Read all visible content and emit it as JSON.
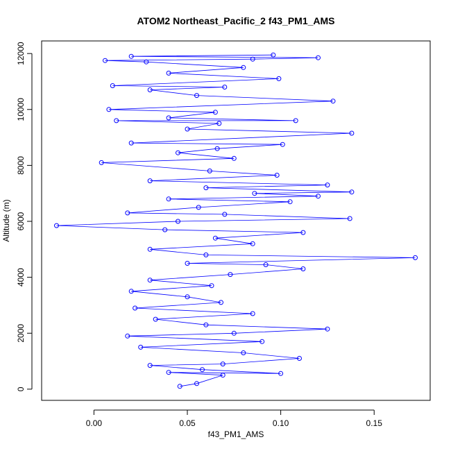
{
  "chart_data": {
    "type": "scatter",
    "title": "ATOM2 Northeast_Pacific_2 f43_PM1_AMS",
    "xlabel": "f43_PM1_AMS",
    "ylabel": "Altitude (m)",
    "xlim": [
      -0.028,
      0.18
    ],
    "ylim": [
      -400,
      12450
    ],
    "x_ticks": [
      0.0,
      0.05,
      0.1,
      0.15
    ],
    "x_tick_labels": [
      "0.00",
      "0.05",
      "0.10",
      "0.15"
    ],
    "y_ticks": [
      0,
      2000,
      4000,
      6000,
      8000,
      10000,
      12000
    ],
    "y_tick_labels": [
      "0",
      "2000",
      "4000",
      "6000",
      "8000",
      "10000",
      "12000"
    ],
    "grid": false,
    "legend": "none",
    "colors": {
      "series": "#0000ff",
      "axes": "#000000"
    },
    "series": [
      {
        "connected": true,
        "marker": "open-circle",
        "points": [
          [
            0.046,
            100
          ],
          [
            0.055,
            200
          ],
          [
            0.069,
            500
          ],
          [
            0.04,
            600
          ],
          [
            0.1,
            560
          ],
          [
            0.058,
            700
          ],
          [
            0.03,
            850
          ],
          [
            0.069,
            900
          ],
          [
            0.11,
            1100
          ],
          [
            0.08,
            1300
          ],
          [
            0.025,
            1500
          ],
          [
            0.09,
            1700
          ],
          [
            0.018,
            1900
          ],
          [
            0.075,
            2000
          ],
          [
            0.125,
            2150
          ],
          [
            0.06,
            2300
          ],
          [
            0.033,
            2500
          ],
          [
            0.085,
            2700
          ],
          [
            0.022,
            2900
          ],
          [
            0.068,
            3100
          ],
          [
            0.05,
            3300
          ],
          [
            0.02,
            3500
          ],
          [
            0.063,
            3700
          ],
          [
            0.03,
            3900
          ],
          [
            0.073,
            4100
          ],
          [
            0.112,
            4300
          ],
          [
            0.092,
            4450
          ],
          [
            0.05,
            4500
          ],
          [
            0.172,
            4700
          ],
          [
            0.06,
            4800
          ],
          [
            0.03,
            5000
          ],
          [
            0.085,
            5200
          ],
          [
            0.065,
            5400
          ],
          [
            0.112,
            5600
          ],
          [
            0.038,
            5700
          ],
          [
            -0.02,
            5850
          ],
          [
            0.045,
            6000
          ],
          [
            0.137,
            6100
          ],
          [
            0.07,
            6250
          ],
          [
            0.018,
            6300
          ],
          [
            0.056,
            6500
          ],
          [
            0.105,
            6700
          ],
          [
            0.04,
            6800
          ],
          [
            0.12,
            6900
          ],
          [
            0.086,
            7000
          ],
          [
            0.138,
            7050
          ],
          [
            0.06,
            7200
          ],
          [
            0.125,
            7300
          ],
          [
            0.03,
            7450
          ],
          [
            0.098,
            7650
          ],
          [
            0.062,
            7800
          ],
          [
            0.004,
            8100
          ],
          [
            0.075,
            8250
          ],
          [
            0.045,
            8450
          ],
          [
            0.066,
            8600
          ],
          [
            0.101,
            8750
          ],
          [
            0.02,
            8800
          ],
          [
            0.138,
            9150
          ],
          [
            0.05,
            9300
          ],
          [
            0.067,
            9500
          ],
          [
            0.012,
            9600
          ],
          [
            0.108,
            9600
          ],
          [
            0.04,
            9700
          ],
          [
            0.065,
            9900
          ],
          [
            0.008,
            10000
          ],
          [
            0.128,
            10300
          ],
          [
            0.055,
            10500
          ],
          [
            0.03,
            10700
          ],
          [
            0.07,
            10800
          ],
          [
            0.01,
            10850
          ],
          [
            0.099,
            11100
          ],
          [
            0.04,
            11300
          ],
          [
            0.08,
            11500
          ],
          [
            0.028,
            11700
          ],
          [
            0.006,
            11750
          ],
          [
            0.085,
            11800
          ],
          [
            0.12,
            11850
          ],
          [
            0.02,
            11900
          ],
          [
            0.096,
            11950
          ]
        ]
      }
    ]
  }
}
